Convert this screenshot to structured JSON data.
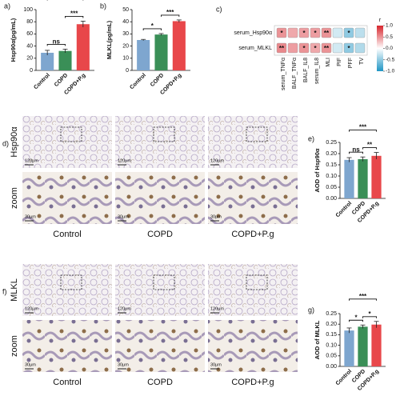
{
  "chart_data": [
    {
      "type": "bar",
      "panel": "a)",
      "ylabel": "Hsp90α(pg/mL)",
      "categories": [
        "Control",
        "COPD",
        "COPD+P.g"
      ],
      "values": [
        29,
        32,
        76
      ],
      "errors": [
        4,
        3,
        5
      ],
      "colors": [
        "#7ea6cf",
        "#3a8f57",
        "#e8474a"
      ],
      "ylim": [
        0,
        100
      ],
      "yticks": [
        0,
        20,
        40,
        60,
        80,
        100
      ],
      "annotations": [
        {
          "between": [
            "Control",
            "COPD+P.g"
          ],
          "label": "***"
        },
        {
          "between": [
            "Control",
            "COPD"
          ],
          "label": "ns"
        },
        {
          "between": [
            "COPD",
            "COPD+P.g"
          ],
          "label": "***"
        }
      ]
    },
    {
      "type": "bar",
      "panel": "b)",
      "ylabel": "MLKL(pg/mL)",
      "categories": [
        "Control",
        "COPD",
        "COPD+P.g"
      ],
      "values": [
        25,
        29.5,
        40.5
      ],
      "errors": [
        0.5,
        0.8,
        1
      ],
      "colors": [
        "#7ea6cf",
        "#3a8f57",
        "#e8474a"
      ],
      "ylim": [
        0,
        50
      ],
      "yticks": [
        0,
        10,
        20,
        30,
        40,
        50
      ],
      "annotations": [
        {
          "between": [
            "Control",
            "COPD+P.g"
          ],
          "label": "***"
        },
        {
          "between": [
            "Control",
            "COPD"
          ],
          "label": "*"
        },
        {
          "between": [
            "COPD",
            "COPD+P.g"
          ],
          "label": "***"
        }
      ]
    },
    {
      "type": "heatmap",
      "panel": "c)",
      "rows": [
        "serum_Hsp90α",
        "serum_MLKL"
      ],
      "columns": [
        "serum_TNFα",
        "BALF_TNFα",
        "BALF_IL8",
        "serum_IL8",
        "MLI",
        "PIF",
        "PFF",
        "TV"
      ],
      "values": [
        [
          0.5,
          0.4,
          0.45,
          0.45,
          0.5,
          -0.2,
          -0.5,
          -0.3
        ],
        [
          0.55,
          0.45,
          0.5,
          0.4,
          0.5,
          -0.2,
          -0.5,
          -0.35
        ]
      ],
      "annotations": [
        [
          "*",
          null,
          "*",
          "*",
          "**",
          null,
          "*",
          null
        ],
        [
          "**",
          null,
          "*",
          "*",
          "**",
          null,
          "*",
          null
        ]
      ],
      "colorscale": [
        "#1f95c4",
        "#ffffff",
        "#d7262d"
      ],
      "colorbar": {
        "label": "r",
        "lim": [
          -1,
          1
        ],
        "ticks": [
          {
            "value": 1,
            "label": "1.0"
          },
          {
            "value": 0.5,
            "label": "0.5"
          },
          {
            "value": 0,
            "label": "0.0"
          },
          {
            "value": -0.5,
            "label": "-0.5"
          },
          {
            "value": -1,
            "label": "-1.0"
          }
        ]
      }
    },
    {
      "type": "bar",
      "panel": "e)",
      "ylabel": "AOD of Hsp90α",
      "categories": [
        "Control",
        "COPD",
        "COPD+P.g"
      ],
      "values": [
        0.172,
        0.175,
        0.19
      ],
      "errors": [
        0.01,
        0.01,
        0.015
      ],
      "colors": [
        "#7ea6cf",
        "#3a8f57",
        "#e8474a"
      ],
      "ylim": [
        0,
        0.25
      ],
      "yticks": [
        {
          "value": 0,
          "label": "0.00"
        },
        {
          "value": 0.05,
          "label": "0.05"
        },
        {
          "value": 0.1,
          "label": "0.10"
        },
        {
          "value": 0.15,
          "label": "0.15"
        },
        {
          "value": 0.2,
          "label": "0.20"
        },
        {
          "value": 0.25,
          "label": "0.25"
        }
      ],
      "annotations": [
        {
          "between": [
            "Control",
            "COPD+P.g"
          ],
          "label": "***"
        },
        {
          "between": [
            "Control",
            "COPD"
          ],
          "label": "ns"
        },
        {
          "between": [
            "COPD",
            "COPD+P.g"
          ],
          "label": "**"
        }
      ]
    },
    {
      "type": "bar",
      "panel": "g)",
      "ylabel": "AOD of MLKL",
      "categories": [
        "Control",
        "COPD",
        "COPD+P.g"
      ],
      "values": [
        0.17,
        0.188,
        0.198
      ],
      "errors": [
        0.012,
        0.008,
        0.015
      ],
      "colors": [
        "#7ea6cf",
        "#3a8f57",
        "#e8474a"
      ],
      "ylim": [
        0,
        0.25
      ],
      "yticks": [
        {
          "value": 0,
          "label": "0.00"
        },
        {
          "value": 0.05,
          "label": "0.05"
        },
        {
          "value": 0.1,
          "label": "0.10"
        },
        {
          "value": 0.15,
          "label": "0.15"
        },
        {
          "value": 0.2,
          "label": "0.20"
        },
        {
          "value": 0.25,
          "label": "0.25"
        }
      ],
      "annotations": [
        {
          "between": [
            "Control",
            "COPD+P.g"
          ],
          "label": "***"
        },
        {
          "between": [
            "Control",
            "COPD"
          ],
          "label": "*"
        },
        {
          "between": [
            "COPD",
            "COPD+P.g"
          ],
          "label": "*"
        }
      ]
    }
  ],
  "image_panels": [
    {
      "panel": "d)",
      "marker": "Hsp90α",
      "zoom": "zoom",
      "columns": [
        "Control",
        "COPD",
        "COPD+P.g"
      ],
      "scale_overview": "120μm",
      "scale_zoom": "30μm"
    },
    {
      "panel": "f)",
      "marker": "MLKL",
      "zoom": "zoom",
      "columns": [
        "Control",
        "COPD",
        "COPD+P.g"
      ],
      "scale_overview": "120μm",
      "scale_zoom": "30μm"
    }
  ]
}
